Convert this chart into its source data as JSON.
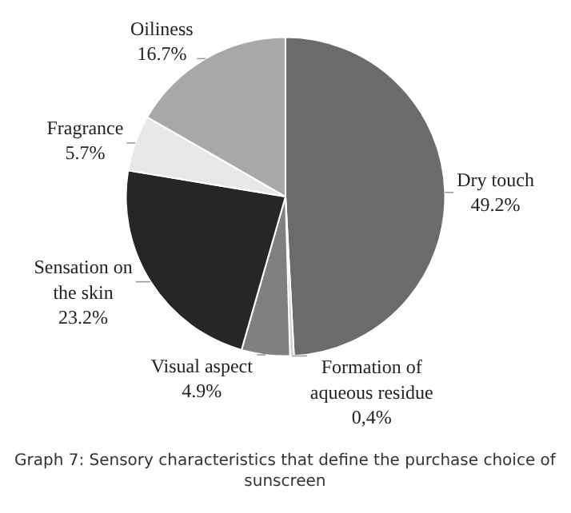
{
  "chart_data": {
    "type": "pie",
    "title": "Graph 7: Sensory characteristics that define the purchase choice of sunscreen",
    "categories": [
      "Dry touch",
      "Formation of aqueous residue",
      "Visual aspect",
      "Sensation on the skin",
      "Fragrance",
      "Oiliness"
    ],
    "values": [
      49.2,
      0.4,
      4.9,
      23.2,
      5.7,
      16.7
    ],
    "value_labels": [
      "49.2%",
      "0,4%",
      "4.9%",
      "23.2%",
      "5.7%",
      "16.7%"
    ],
    "colors": [
      "#6b6b6b",
      "#d0d0d0",
      "#808080",
      "#262626",
      "#e8e8e8",
      "#a8a8a8"
    ],
    "legend": false
  }
}
